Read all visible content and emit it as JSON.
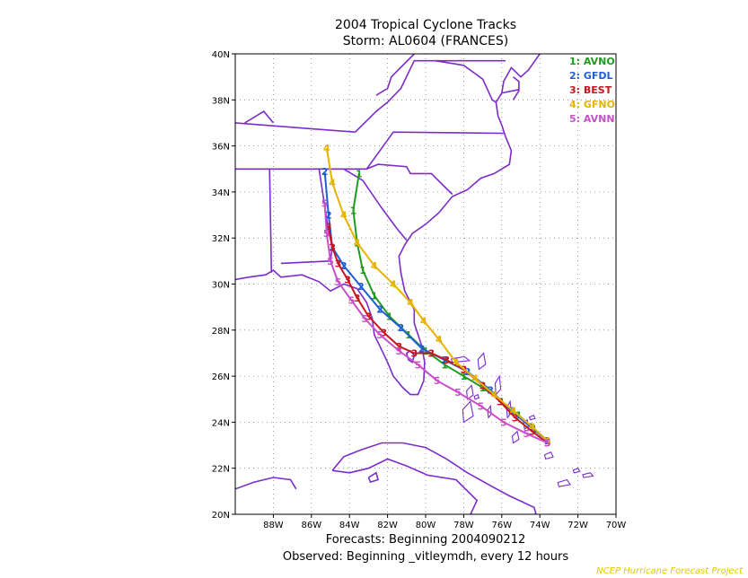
{
  "title": "2004 Tropical Cyclone Tracks",
  "subtitle": "Storm: AL0604 (FRANCES)",
  "footer_line1": "Forecasts: Beginning 2004090212",
  "footer_line2": "Observed: Beginning _vitleymdh, every 12 hours",
  "credit": "NCEP Hurricane Forecast Project",
  "map": {
    "lon_range": [
      -90,
      -70
    ],
    "lat_range": [
      20,
      40
    ],
    "lat_ticks": [
      "20N",
      "22N",
      "24N",
      "26N",
      "28N",
      "30N",
      "32N",
      "34N",
      "36N",
      "38N",
      "40N"
    ],
    "lon_ticks": [
      "88W",
      "86W",
      "84W",
      "82W",
      "80W",
      "78W",
      "76W",
      "74W",
      "72W",
      "70W"
    ],
    "grid": true,
    "coastline_color": "#7b2cc9"
  },
  "chart_data": {
    "type": "track-map",
    "title": "2004 Tropical Cyclone Tracks",
    "subtitle": "Storm: AL0604 (FRANCES)",
    "xlim": [
      -90,
      -70
    ],
    "ylim": [
      20,
      40
    ],
    "grid": true,
    "legend_position": "top-right",
    "series": [
      {
        "id": "1",
        "name": "AVNO",
        "color": "#1f9c1f",
        "lon": [
          -73.6,
          -74.3,
          -75.1,
          -76.0,
          -77.0,
          -78.0,
          -79.0,
          -80.0,
          -80.9,
          -81.9,
          -82.7,
          -83.3,
          -83.6,
          -83.8,
          -83.5
        ],
        "lat": [
          23.2,
          23.7,
          24.3,
          24.9,
          25.5,
          26.0,
          26.5,
          27.1,
          27.8,
          28.6,
          29.5,
          30.6,
          31.8,
          33.2,
          34.8
        ]
      },
      {
        "id": "2",
        "name": "GFDL",
        "color": "#1f5fd6",
        "lon": [
          -73.6,
          -74.5,
          -75.5,
          -76.6,
          -77.8,
          -79.0,
          -80.2,
          -81.3,
          -82.4,
          -83.4,
          -84.3,
          -84.9,
          -85.1,
          -85.3
        ],
        "lat": [
          23.2,
          23.8,
          24.5,
          25.4,
          26.2,
          26.7,
          27.2,
          28.1,
          28.9,
          29.9,
          30.8,
          31.6,
          33.0,
          34.9
        ]
      },
      {
        "id": "3",
        "name": "BEST",
        "color": "#c8141e",
        "lon": [
          -73.6,
          -74.4,
          -75.3,
          -76.1,
          -77.0,
          -78.0,
          -78.9,
          -79.7,
          -80.6,
          -81.4,
          -82.2,
          -83.0,
          -83.6,
          -84.1,
          -84.6,
          -84.9,
          -85.1
        ],
        "lat": [
          23.1,
          23.6,
          24.2,
          24.9,
          25.6,
          26.3,
          26.7,
          27.0,
          27.0,
          27.3,
          27.9,
          28.6,
          29.4,
          30.2,
          30.9,
          31.6,
          32.5
        ]
      },
      {
        "id": "4",
        "name": "GFNO",
        "color": "#e6b400",
        "lon": [
          -73.6,
          -74.4,
          -75.4,
          -76.4,
          -77.4,
          -78.4,
          -79.3,
          -80.1,
          -80.8,
          -81.7,
          -82.7,
          -83.6,
          -84.3,
          -84.9,
          -85.2
        ],
        "lat": [
          23.2,
          23.8,
          24.5,
          25.2,
          25.9,
          26.6,
          27.6,
          28.4,
          29.2,
          30.0,
          30.8,
          31.8,
          33.0,
          34.4,
          35.9
        ]
      },
      {
        "id": "5",
        "name": "AVNN",
        "color": "#c850c8",
        "lon": [
          -73.6,
          -74.7,
          -75.9,
          -77.1,
          -78.3,
          -79.4,
          -80.4,
          -81.4,
          -82.4,
          -83.2,
          -83.9,
          -84.6,
          -85.0,
          -85.2,
          -85.3
        ],
        "lat": [
          23.1,
          23.5,
          24.0,
          24.7,
          25.3,
          25.8,
          26.5,
          27.1,
          27.8,
          28.5,
          29.3,
          30.1,
          31.0,
          32.2,
          33.5
        ]
      }
    ]
  }
}
